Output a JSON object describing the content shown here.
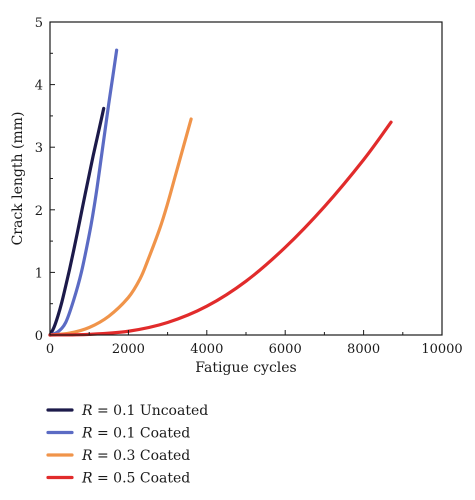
{
  "chart_data": {
    "type": "line",
    "title": "",
    "xlabel": "Fatigue cycles",
    "ylabel": "Crack length (mm)",
    "xlim": [
      0,
      10000
    ],
    "ylim": [
      0,
      5
    ],
    "x_ticks": [
      0,
      2000,
      4000,
      6000,
      8000,
      10000
    ],
    "y_ticks": [
      0,
      1,
      2,
      3,
      4,
      5
    ],
    "grid": false,
    "legend_position": "bottom",
    "series": [
      {
        "name": "R = 0.1 Uncoated",
        "legend_symbol": "R",
        "legend_rest": " = 0.1 Uncoated",
        "color": "#1c1a4a",
        "x": [
          0,
          100,
          200,
          300,
          400,
          500,
          600,
          700,
          800,
          900,
          1000,
          1100,
          1200,
          1300,
          1370
        ],
        "y": [
          0,
          0.12,
          0.3,
          0.52,
          0.78,
          1.05,
          1.34,
          1.64,
          1.95,
          2.26,
          2.56,
          2.86,
          3.14,
          3.42,
          3.62
        ]
      },
      {
        "name": "R = 0.1 Coated",
        "legend_symbol": "R",
        "legend_rest": " = 0.1 Coated",
        "color": "#5b6bc4",
        "x": [
          0,
          200,
          400,
          600,
          800,
          1000,
          1100,
          1200,
          1300,
          1400,
          1500,
          1600,
          1700
        ],
        "y": [
          0,
          0.05,
          0.2,
          0.55,
          1.0,
          1.6,
          1.95,
          2.35,
          2.8,
          3.25,
          3.7,
          4.12,
          4.55
        ]
      },
      {
        "name": "R = 0.3 Coated",
        "legend_symbol": "R",
        "legend_rest": " = 0.3 Coated",
        "color": "#f0944a",
        "x": [
          0,
          500,
          1000,
          1500,
          2000,
          2300,
          2500,
          2800,
          3000,
          3200,
          3400,
          3600
        ],
        "y": [
          0,
          0.03,
          0.12,
          0.3,
          0.6,
          0.9,
          1.2,
          1.7,
          2.1,
          2.55,
          3.0,
          3.45
        ]
      },
      {
        "name": "R = 0.5 Coated",
        "legend_symbol": "R",
        "legend_rest": " = 0.5 Coated",
        "color": "#e12b2b",
        "x": [
          0,
          1000,
          2000,
          3000,
          4000,
          5000,
          6000,
          7000,
          8000,
          8700
        ],
        "y": [
          0,
          0.01,
          0.06,
          0.2,
          0.46,
          0.86,
          1.4,
          2.05,
          2.8,
          3.4
        ]
      }
    ]
  }
}
